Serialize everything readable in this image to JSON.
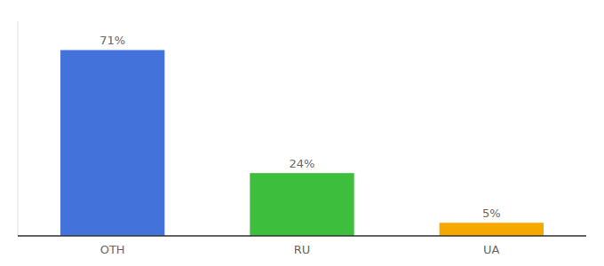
{
  "chart_data": {
    "type": "bar",
    "categories": [
      "OTH",
      "RU",
      "UA"
    ],
    "values": [
      71,
      24,
      5
    ],
    "value_labels": [
      "71%",
      "24%",
      "5%"
    ],
    "colors": [
      "#4472db",
      "#3dbf3d",
      "#f5a800"
    ],
    "ylim": [
      0,
      82
    ],
    "data_labels": true,
    "tick_labels": "x"
  }
}
